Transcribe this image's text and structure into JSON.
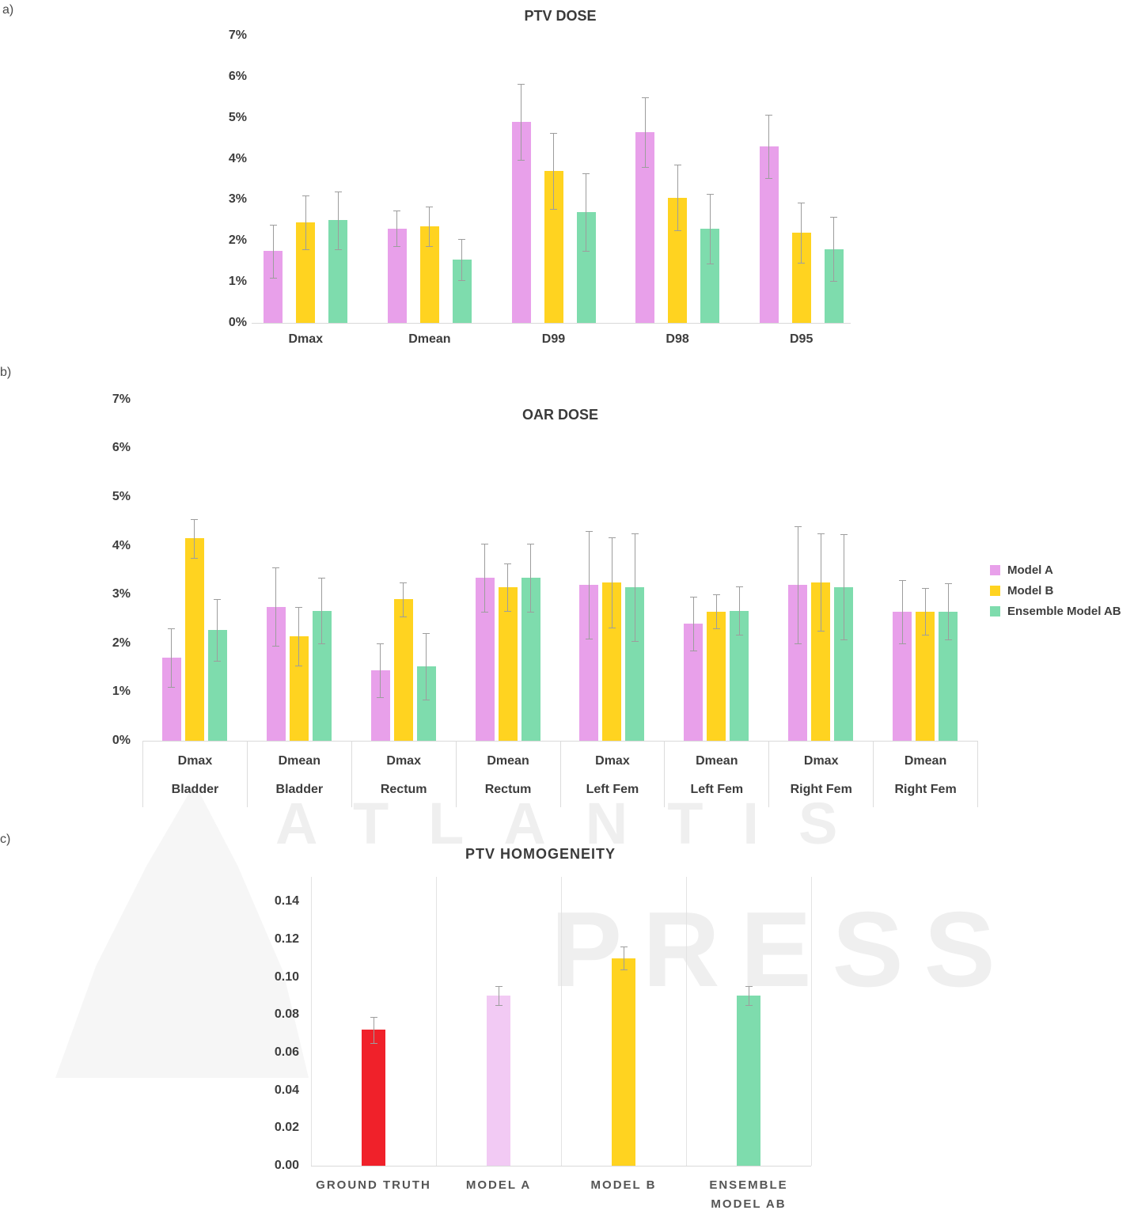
{
  "watermark": {
    "line1": "ATLANTIS",
    "line2": "PRESS"
  },
  "chart_data": [
    {
      "panel_label": "a)",
      "type": "bar",
      "title": "PTV DOSE",
      "xlabel": "",
      "ylabel": "",
      "unit": "percent",
      "ylim": [
        0,
        7
      ],
      "grid": "off",
      "legend_position": "none",
      "error_bars": true,
      "y_ticks": [
        "7%",
        "6%",
        "5%",
        "4%",
        "3%",
        "2%",
        "1%",
        "0%"
      ],
      "categories": [
        "Dmax",
        "Dmean",
        "D99",
        "D98",
        "D95"
      ],
      "series": [
        {
          "name": "Model A",
          "color": "#E8A0EA",
          "values": [
            1.75,
            2.3,
            4.9,
            4.65,
            4.3
          ],
          "errors": [
            0.65,
            0.43,
            0.92,
            0.85,
            0.78
          ]
        },
        {
          "name": "Model B",
          "color": "#FFD320",
          "values": [
            2.45,
            2.35,
            3.7,
            3.05,
            2.2
          ],
          "errors": [
            0.65,
            0.48,
            0.92,
            0.8,
            0.73
          ]
        },
        {
          "name": "Ensemble Model AB",
          "color": "#7EDCAD",
          "values": [
            2.5,
            1.55,
            2.7,
            2.3,
            1.8
          ],
          "errors": [
            0.7,
            0.5,
            0.95,
            0.85,
            0.78
          ]
        }
      ]
    },
    {
      "panel_label": "b)",
      "type": "bar",
      "title": "OAR DOSE",
      "xlabel": "",
      "ylabel": "",
      "unit": "percent",
      "ylim": [
        0,
        7
      ],
      "grid": "off",
      "legend_position": "right",
      "error_bars": true,
      "y_ticks": [
        "7%",
        "6%",
        "5%",
        "4%",
        "3%",
        "2%",
        "1%",
        "0%"
      ],
      "categories": [
        {
          "metric": "Dmax",
          "organ": "Bladder"
        },
        {
          "metric": "Dmean",
          "organ": "Bladder"
        },
        {
          "metric": "Dmax",
          "organ": "Rectum"
        },
        {
          "metric": "Dmean",
          "organ": "Rectum"
        },
        {
          "metric": "Dmax",
          "organ": "Left Fem"
        },
        {
          "metric": "Dmean",
          "organ": "Left Fem"
        },
        {
          "metric": "Dmax",
          "organ": "Right Fem"
        },
        {
          "metric": "Dmean",
          "organ": "Right Fem"
        }
      ],
      "series": [
        {
          "name": "Model A",
          "color": "#E8A0EA",
          "values": [
            1.7,
            2.75,
            1.45,
            3.35,
            3.2,
            2.4,
            3.2,
            2.65
          ],
          "errors": [
            0.6,
            0.8,
            0.55,
            0.7,
            1.1,
            0.55,
            1.2,
            0.65
          ]
        },
        {
          "name": "Model B",
          "color": "#FFD320",
          "values": [
            4.15,
            2.15,
            2.9,
            3.15,
            3.25,
            2.65,
            3.25,
            2.65
          ],
          "errors": [
            0.4,
            0.6,
            0.35,
            0.48,
            0.93,
            0.35,
            1.0,
            0.48
          ]
        },
        {
          "name": "Ensemble Model AB",
          "color": "#7EDCAD",
          "values": [
            2.27,
            2.67,
            1.52,
            3.35,
            3.15,
            2.67,
            3.15,
            2.65
          ],
          "errors": [
            0.63,
            0.68,
            0.68,
            0.7,
            1.1,
            0.5,
            1.08,
            0.58
          ]
        }
      ]
    },
    {
      "panel_label": "c)",
      "type": "bar",
      "title": "PTV HOMOGENEITY",
      "xlabel": "",
      "ylabel": "",
      "unit": "index",
      "ylim": [
        0,
        0.14
      ],
      "grid": "vertical",
      "legend_position": "none",
      "error_bars": true,
      "y_ticks": [
        "0.14",
        "0.12",
        "0.10",
        "0.08",
        "0.06",
        "0.04",
        "0.02",
        "0.00"
      ],
      "categories": [
        "GROUND TRUTH",
        "MODEL A",
        "MODEL B",
        "ENSEMBLE MODEL AB"
      ],
      "label_lines": [
        [
          "GROUND TRUTH"
        ],
        [
          "MODEL A"
        ],
        [
          "MODEL B"
        ],
        [
          "ENSEMBLE",
          "MODEL AB"
        ]
      ],
      "values": [
        0.072,
        0.09,
        0.11,
        0.09
      ],
      "errors": [
        0.007,
        0.005,
        0.006,
        0.005
      ],
      "colors": [
        "#F0212A",
        "#F2CAF4",
        "#FFD320",
        "#7EDCAD"
      ]
    }
  ]
}
